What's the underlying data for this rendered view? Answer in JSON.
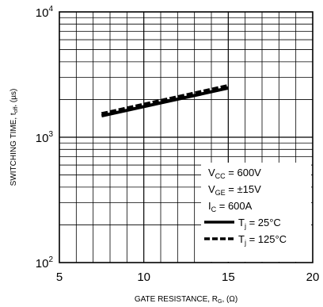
{
  "chart_data": {
    "type": "line",
    "xlabel": {
      "main": "GATE RESISTANCE, R",
      "sub": "G",
      "tail": ", (Ω)"
    },
    "ylabel": {
      "main": "SWITCHING TIME, t",
      "sub": "off",
      "tail": ", (µs)"
    },
    "xlim": [
      5,
      20
    ],
    "ylim": [
      100,
      10000
    ],
    "yscale": "log",
    "grid": true,
    "x_ticks": [
      {
        "value": 5,
        "label": "5"
      },
      {
        "value": 10,
        "label": "10"
      },
      {
        "value": 15,
        "label": "15"
      },
      {
        "value": 20,
        "label": "20"
      }
    ],
    "y_ticks": [
      {
        "value": 100,
        "base": "10",
        "exp": "2"
      },
      {
        "value": 1000,
        "base": "10",
        "exp": "3"
      },
      {
        "value": 10000,
        "base": "10",
        "exp": "4"
      }
    ],
    "conditions": [
      {
        "main": "V",
        "sub": "CC",
        "tail": " = 600V"
      },
      {
        "main": "V",
        "sub": "GE",
        "tail": " = ±15V"
      },
      {
        "main": "I",
        "sub": "C",
        "tail": " = 600A"
      }
    ],
    "series": [
      {
        "name": {
          "main": "T",
          "sub": "j",
          "tail": " = 25°C"
        },
        "style": "solid",
        "x": [
          7.5,
          15
        ],
        "y": [
          1480,
          2470
        ]
      },
      {
        "name": {
          "main": "T",
          "sub": "j",
          "tail": " = 125°C"
        },
        "style": "dashed",
        "x": [
          7.5,
          15
        ],
        "y": [
          1540,
          2580
        ]
      }
    ],
    "legend_position": "bottom-right"
  }
}
